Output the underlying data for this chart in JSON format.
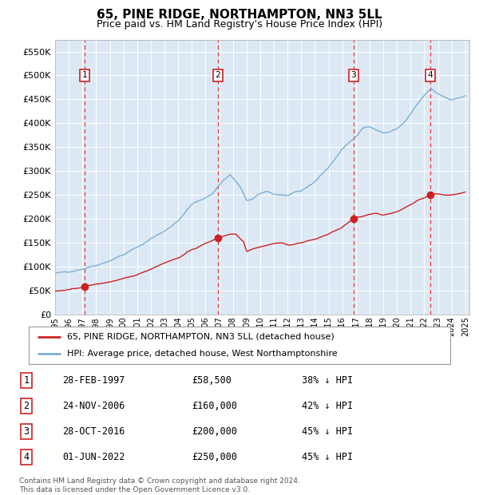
{
  "title": "65, PINE RIDGE, NORTHAMPTON, NN3 5LL",
  "subtitle": "Price paid vs. HM Land Registry's House Price Index (HPI)",
  "title_fontsize": 11,
  "subtitle_fontsize": 9,
  "plot_bg_color": "#dce9f5",
  "ylim": [
    0,
    575000
  ],
  "yticks": [
    0,
    50000,
    100000,
    150000,
    200000,
    250000,
    300000,
    350000,
    400000,
    450000,
    500000,
    550000
  ],
  "ytick_labels": [
    "£0",
    "£50K",
    "£100K",
    "£150K",
    "£200K",
    "£250K",
    "£300K",
    "£350K",
    "£400K",
    "£450K",
    "£500K",
    "£550K"
  ],
  "hpi_line_color": "#7bafd4",
  "sale_line_color": "#cc2222",
  "sale_dot_color": "#cc2222",
  "vline_color": "#ee3333",
  "legend_label1": "65, PINE RIDGE, NORTHAMPTON, NN3 5LL (detached house)",
  "legend_label2": "HPI: Average price, detached house, West Northamptonshire",
  "sales": [
    {
      "label": 1,
      "year": 1997.16,
      "price": 58500
    },
    {
      "label": 2,
      "year": 2006.9,
      "price": 160000
    },
    {
      "label": 3,
      "year": 2016.83,
      "price": 200000
    },
    {
      "label": 4,
      "year": 2022.42,
      "price": 250000
    }
  ],
  "sale_info": [
    {
      "num": 1,
      "date": "28-FEB-1997",
      "price": "£58,500",
      "pct": "38% ↓ HPI"
    },
    {
      "num": 2,
      "date": "24-NOV-2006",
      "price": "£160,000",
      "pct": "42% ↓ HPI"
    },
    {
      "num": 3,
      "date": "28-OCT-2016",
      "price": "£200,000",
      "pct": "45% ↓ HPI"
    },
    {
      "num": 4,
      "date": "01-JUN-2022",
      "price": "£250,000",
      "pct": "45% ↓ HPI"
    }
  ],
  "footer": "Contains HM Land Registry data © Crown copyright and database right 2024.\nThis data is licensed under the Open Government Licence v3.0."
}
